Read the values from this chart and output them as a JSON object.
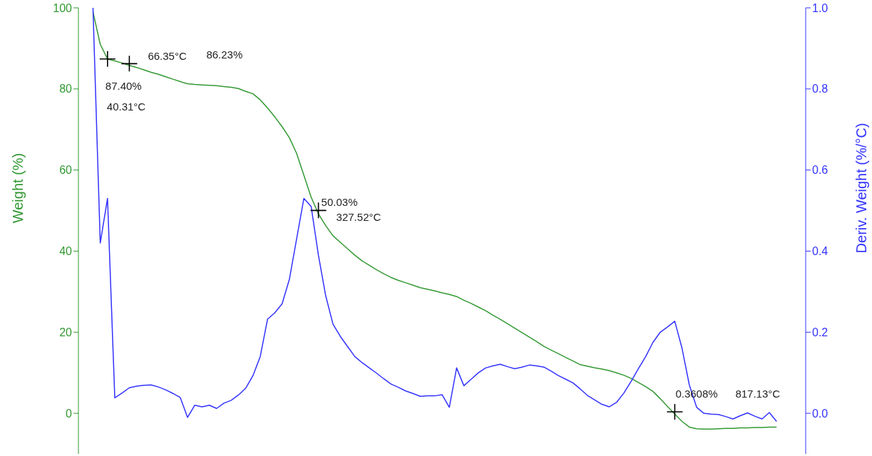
{
  "chart_data": {
    "type": "line",
    "ylabel": "Weight (%)",
    "y2label": "Deriv. Weight (%/°C)",
    "ylim": [
      -10,
      100
    ],
    "categories": [
      null,
      null,
      null,
      null,
      null,
      null,
      null,
      null,
      null,
      null,
      null,
      null,
      null,
      null,
      null,
      null,
      null,
      null,
      null,
      null,
      null,
      null,
      null,
      null,
      null,
      null,
      null,
      null,
      null,
      null,
      null,
      null,
      null,
      null,
      null,
      null,
      null,
      null,
      null,
      null,
      null,
      null,
      null,
      null,
      null,
      null,
      null,
      null,
      null,
      null,
      null,
      null,
      null,
      null,
      null,
      null,
      null,
      null,
      null,
      null,
      null,
      null,
      null,
      null,
      null,
      null,
      null,
      null,
      null,
      null,
      null,
      null,
      null,
      null,
      null,
      null,
      null,
      null,
      null,
      null,
      null,
      null,
      null,
      null,
      null,
      null,
      null,
      null,
      null,
      null,
      null,
      null,
      null,
      null,
      null
    ],
    "yticks": [
      0,
      20,
      40,
      60,
      80,
      100
    ],
    "y2lim": [
      -0.1,
      1.0
    ],
    "y2ticks": [
      {
        "value": 0,
        "label": "0.0"
      },
      {
        "value": 0.2,
        "label": "0.2"
      },
      {
        "value": 0.4,
        "label": "0.4"
      },
      {
        "value": 0.6,
        "label": "0.6"
      },
      {
        "value": 0.8,
        "label": "0.8"
      },
      {
        "value": 1,
        "label": "1.0"
      }
    ],
    "tick_labels": "y",
    "series": [
      {
        "color": "#339933",
        "values": [
          99,
          91,
          87.4,
          86.9,
          86.4,
          85.8,
          85.3,
          84.7,
          84.1,
          83.6,
          83.0,
          82.4,
          81.8,
          81.3,
          81.1,
          81.0,
          80.9,
          80.8,
          80.6,
          80.4,
          80.1,
          79.4,
          78.8,
          77.3,
          75.3,
          73.1,
          70.7,
          68.0,
          64.1,
          58.7,
          53.3,
          49.2,
          46.3,
          43.8,
          42.2,
          40.6,
          39.0,
          37.6,
          36.5,
          35.4,
          34.4,
          33.5,
          32.8,
          32.2,
          31.6,
          31.0,
          30.6,
          30.2,
          29.7,
          29.3,
          28.8,
          27.9,
          27.1,
          26.2,
          25.3,
          24.2,
          23.2,
          22.1,
          21.0,
          19.9,
          18.8,
          17.7,
          16.5,
          15.6,
          14.7,
          13.8,
          12.9,
          12.0,
          11.6,
          11.2,
          10.9,
          10.5,
          10.0,
          9.4,
          8.6,
          7.6,
          6.6,
          5.4,
          3.6,
          1.7,
          -0.2,
          -2.0,
          -3.4,
          -3.8,
          -3.9,
          -3.9,
          -3.8,
          -3.7,
          -3.7,
          -3.6,
          -3.6,
          -3.5,
          -3.5,
          -3.4,
          -3.4
        ]
      },
      {
        "axis": "y2",
        "color": "#3333ff",
        "values": [
          1.0,
          0.42,
          0.53,
          0.038,
          0.05,
          0.063,
          0.067,
          0.069,
          0.07,
          0.065,
          0.058,
          0.049,
          0.039,
          -0.01,
          0.02,
          0.016,
          0.02,
          0.012,
          0.025,
          0.032,
          0.045,
          0.062,
          0.093,
          0.14,
          0.232,
          0.248,
          0.27,
          0.33,
          0.43,
          0.53,
          0.51,
          0.39,
          0.29,
          0.22,
          0.19,
          0.165,
          0.14,
          0.125,
          0.112,
          0.099,
          0.085,
          0.072,
          0.064,
          0.055,
          0.049,
          0.042,
          0.043,
          0.043,
          0.046,
          0.015,
          0.112,
          0.068,
          0.084,
          0.1,
          0.112,
          0.117,
          0.121,
          0.115,
          0.11,
          0.114,
          0.119,
          0.117,
          0.114,
          0.104,
          0.093,
          0.084,
          0.075,
          0.06,
          0.044,
          0.033,
          0.022,
          0.016,
          0.027,
          0.05,
          0.079,
          0.11,
          0.14,
          0.175,
          0.2,
          0.213,
          0.227,
          0.16,
          0.07,
          0.015,
          0.0,
          -0.002,
          -0.003,
          -0.008,
          -0.014,
          -0.006,
          0.001,
          -0.007,
          -0.014,
          0.002,
          -0.02
        ]
      },
      {
        "type": "scatter",
        "marker": "cross",
        "color": "#000000",
        "values": [
          null,
          null,
          87.4,
          null,
          null,
          86.23,
          null,
          null,
          null,
          null,
          null,
          null,
          null,
          null,
          null,
          null,
          null,
          null,
          null,
          null,
          null,
          null,
          null,
          null,
          null,
          null,
          null,
          null,
          null,
          null,
          null,
          50.03,
          null,
          null,
          null,
          null,
          null,
          null,
          null,
          null,
          null,
          null,
          null,
          null,
          null,
          null,
          null,
          null,
          null,
          null,
          null,
          null,
          null,
          null,
          null,
          null,
          null,
          null,
          null,
          null,
          null,
          null,
          null,
          null,
          null,
          null,
          null,
          null,
          null,
          null,
          null,
          null,
          null,
          null,
          null,
          null,
          null,
          null,
          null,
          null,
          0.3608,
          null,
          null,
          null,
          null,
          null,
          null,
          null,
          null,
          null,
          null,
          null,
          null,
          null,
          null
        ]
      }
    ],
    "annotations": [
      "87.40%",
      "40.31°C",
      "66.35°C",
      "86.23%",
      "50.03%",
      "327.52°C",
      "0.3608%",
      "817.13°C"
    ]
  }
}
